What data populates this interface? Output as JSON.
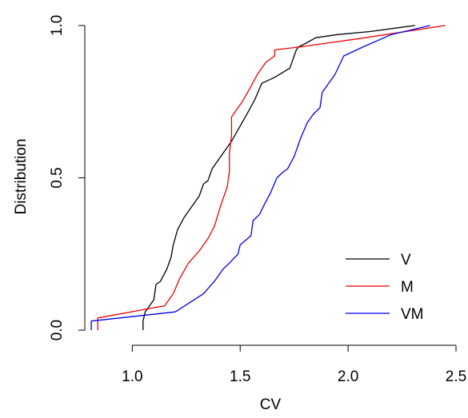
{
  "chart_data": {
    "type": "line",
    "title": "",
    "xlabel": "CV",
    "ylabel": "Distribution",
    "xlim": [
      0.78,
      2.5
    ],
    "ylim": [
      -0.005,
      1.005
    ],
    "x_ticks": [
      1.0,
      1.5,
      2.0,
      2.5
    ],
    "x_tick_labels": [
      "1.0",
      "1.5",
      "2.0",
      "2.5"
    ],
    "y_ticks": [
      0.0,
      0.5,
      1.0
    ],
    "y_tick_labels": [
      "0.0",
      "0.5",
      "1.0"
    ],
    "grid": false,
    "legend_position": "bottom-right",
    "series": [
      {
        "name": "V",
        "color": "#000000",
        "points": [
          [
            1.05,
            0.0
          ],
          [
            1.05,
            0.03
          ],
          [
            1.06,
            0.06
          ],
          [
            1.07,
            0.07
          ],
          [
            1.1,
            0.1
          ],
          [
            1.11,
            0.15
          ],
          [
            1.13,
            0.16
          ],
          [
            1.16,
            0.2
          ],
          [
            1.18,
            0.24
          ],
          [
            1.19,
            0.28
          ],
          [
            1.21,
            0.33
          ],
          [
            1.24,
            0.37
          ],
          [
            1.28,
            0.41
          ],
          [
            1.31,
            0.44
          ],
          [
            1.33,
            0.48
          ],
          [
            1.35,
            0.49
          ],
          [
            1.37,
            0.53
          ],
          [
            1.39,
            0.55
          ],
          [
            1.43,
            0.59
          ],
          [
            1.46,
            0.62
          ],
          [
            1.5,
            0.67
          ],
          [
            1.54,
            0.72
          ],
          [
            1.57,
            0.76
          ],
          [
            1.6,
            0.81
          ],
          [
            1.66,
            0.83
          ],
          [
            1.73,
            0.86
          ],
          [
            1.76,
            0.92
          ],
          [
            1.77,
            0.93
          ],
          [
            1.8,
            0.94
          ],
          [
            1.85,
            0.96
          ],
          [
            1.95,
            0.97
          ],
          [
            2.1,
            0.98
          ],
          [
            2.31,
            1.0
          ]
        ]
      },
      {
        "name": "M",
        "color": "#ee0000",
        "points": [
          [
            0.84,
            0.0
          ],
          [
            0.84,
            0.04
          ],
          [
            1.15,
            0.08
          ],
          [
            1.19,
            0.12
          ],
          [
            1.22,
            0.17
          ],
          [
            1.26,
            0.22
          ],
          [
            1.31,
            0.26
          ],
          [
            1.35,
            0.3
          ],
          [
            1.38,
            0.34
          ],
          [
            1.41,
            0.41
          ],
          [
            1.44,
            0.47
          ],
          [
            1.45,
            0.52
          ],
          [
            1.45,
            0.58
          ],
          [
            1.46,
            0.64
          ],
          [
            1.46,
            0.7
          ],
          [
            1.49,
            0.73
          ],
          [
            1.51,
            0.75
          ],
          [
            1.55,
            0.8
          ],
          [
            1.58,
            0.84
          ],
          [
            1.62,
            0.88
          ],
          [
            1.66,
            0.9
          ],
          [
            1.66,
            0.92
          ],
          [
            1.78,
            0.93
          ],
          [
            2.08,
            0.96
          ],
          [
            2.45,
            1.0
          ]
        ]
      },
      {
        "name": "VM",
        "color": "#0000ee",
        "points": [
          [
            0.81,
            0.0
          ],
          [
            0.81,
            0.03
          ],
          [
            1.2,
            0.06
          ],
          [
            1.33,
            0.12
          ],
          [
            1.38,
            0.16
          ],
          [
            1.42,
            0.2
          ],
          [
            1.45,
            0.22
          ],
          [
            1.49,
            0.25
          ],
          [
            1.5,
            0.28
          ],
          [
            1.55,
            0.31
          ],
          [
            1.56,
            0.36
          ],
          [
            1.59,
            0.38
          ],
          [
            1.61,
            0.41
          ],
          [
            1.64,
            0.45
          ],
          [
            1.67,
            0.5
          ],
          [
            1.7,
            0.52
          ],
          [
            1.72,
            0.53
          ],
          [
            1.75,
            0.57
          ],
          [
            1.78,
            0.63
          ],
          [
            1.81,
            0.68
          ],
          [
            1.84,
            0.71
          ],
          [
            1.87,
            0.73
          ],
          [
            1.88,
            0.78
          ],
          [
            1.89,
            0.79
          ],
          [
            1.91,
            0.81
          ],
          [
            1.94,
            0.84
          ],
          [
            1.98,
            0.9
          ],
          [
            2.07,
            0.93
          ],
          [
            2.2,
            0.97
          ],
          [
            2.38,
            1.0
          ]
        ]
      }
    ]
  }
}
